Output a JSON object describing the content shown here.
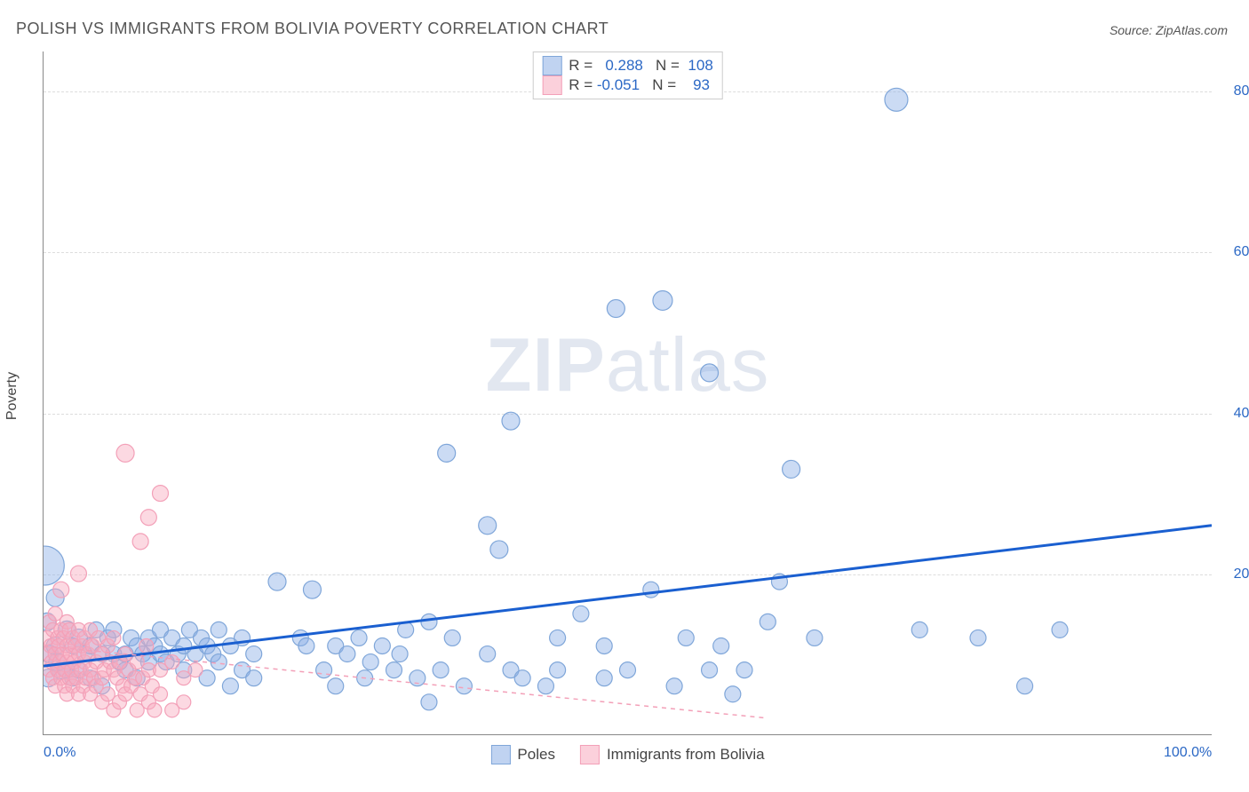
{
  "title": "POLISH VS IMMIGRANTS FROM BOLIVIA POVERTY CORRELATION CHART",
  "source": "Source: ZipAtlas.com",
  "watermark_zip": "ZIP",
  "watermark_atlas": "atlas",
  "ylabel": "Poverty",
  "chart": {
    "type": "scatter",
    "xlim": [
      0,
      100
    ],
    "ylim": [
      0,
      85
    ],
    "xticks": [
      {
        "v": 0,
        "label": "0.0%"
      },
      {
        "v": 100,
        "label": "100.0%"
      }
    ],
    "yticks": [
      {
        "v": 20,
        "label": "20.0%"
      },
      {
        "v": 40,
        "label": "40.0%"
      },
      {
        "v": 60,
        "label": "60.0%"
      },
      {
        "v": 80,
        "label": "80.0%"
      }
    ],
    "grid_color": "#dddddd",
    "background_color": "#ffffff",
    "axis_color": "#888888",
    "tick_label_color": "#2b68c5",
    "series": [
      {
        "name": "Poles",
        "fill": "rgba(140,175,230,0.45)",
        "stroke": "#7fa6d9",
        "r_default": 9,
        "trend": {
          "x1": 0,
          "y1": 8.5,
          "x2": 100,
          "y2": 26,
          "color": "#1a5fd0",
          "width": 3,
          "dash": "none"
        },
        "stats": {
          "R": "0.288",
          "N": "108"
        },
        "points": [
          [
            0.1,
            21,
            22
          ],
          [
            0.3,
            14,
            10
          ],
          [
            0.5,
            10,
            10
          ],
          [
            0.4,
            7,
            10
          ],
          [
            1,
            17,
            10
          ],
          [
            1,
            11,
            10
          ],
          [
            1.2,
            9,
            10
          ],
          [
            1.5,
            8,
            10
          ],
          [
            2,
            13,
            10
          ],
          [
            2,
            8,
            9
          ],
          [
            2.5,
            11,
            9
          ],
          [
            2.5,
            7,
            9
          ],
          [
            3,
            12,
            10
          ],
          [
            3,
            8,
            9
          ],
          [
            3.5,
            10,
            9
          ],
          [
            4,
            11,
            9
          ],
          [
            4,
            7,
            9
          ],
          [
            4.5,
            13,
            9
          ],
          [
            5,
            10,
            9
          ],
          [
            5,
            6,
            9
          ],
          [
            5.5,
            12,
            9
          ],
          [
            6,
            10,
            9
          ],
          [
            6,
            13,
            9
          ],
          [
            6.5,
            9,
            9
          ],
          [
            7,
            10,
            9
          ],
          [
            7,
            8,
            9
          ],
          [
            7.5,
            12,
            9
          ],
          [
            8,
            11,
            9
          ],
          [
            8,
            7,
            9
          ],
          [
            8.5,
            10,
            9
          ],
          [
            9,
            12,
            9
          ],
          [
            9,
            9,
            9
          ],
          [
            9.5,
            11,
            9
          ],
          [
            10,
            10,
            9
          ],
          [
            10,
            13,
            9
          ],
          [
            10.5,
            9,
            9
          ],
          [
            11,
            12,
            9
          ],
          [
            11.5,
            10,
            9
          ],
          [
            12,
            11,
            9
          ],
          [
            12,
            8,
            9
          ],
          [
            12.5,
            13,
            9
          ],
          [
            13,
            10,
            9
          ],
          [
            13.5,
            12,
            9
          ],
          [
            14,
            11,
            9
          ],
          [
            14,
            7,
            9
          ],
          [
            14.5,
            10,
            9
          ],
          [
            15,
            13,
            9
          ],
          [
            15,
            9,
            9
          ],
          [
            16,
            11,
            9
          ],
          [
            16,
            6,
            9
          ],
          [
            17,
            12,
            9
          ],
          [
            17,
            8,
            9
          ],
          [
            18,
            10,
            9
          ],
          [
            18,
            7,
            9
          ],
          [
            20,
            19,
            10
          ],
          [
            22,
            12,
            9
          ],
          [
            22.5,
            11,
            9
          ],
          [
            23,
            18,
            10
          ],
          [
            24,
            8,
            9
          ],
          [
            25,
            11,
            9
          ],
          [
            25,
            6,
            9
          ],
          [
            26,
            10,
            9
          ],
          [
            27,
            12,
            9
          ],
          [
            27.5,
            7,
            9
          ],
          [
            28,
            9,
            9
          ],
          [
            29,
            11,
            9
          ],
          [
            30,
            8,
            9
          ],
          [
            30.5,
            10,
            9
          ],
          [
            31,
            13,
            9
          ],
          [
            32,
            7,
            9
          ],
          [
            33,
            14,
            9
          ],
          [
            33,
            4,
            9
          ],
          [
            34,
            8,
            9
          ],
          [
            34.5,
            35,
            10
          ],
          [
            35,
            12,
            9
          ],
          [
            36,
            6,
            9
          ],
          [
            38,
            26,
            10
          ],
          [
            38,
            10,
            9
          ],
          [
            39,
            23,
            10
          ],
          [
            40,
            8,
            9
          ],
          [
            40,
            39,
            10
          ],
          [
            41,
            7,
            9
          ],
          [
            43,
            6,
            9
          ],
          [
            44,
            12,
            9
          ],
          [
            44,
            8,
            9
          ],
          [
            46,
            15,
            9
          ],
          [
            48,
            7,
            9
          ],
          [
            48,
            11,
            9
          ],
          [
            49,
            53,
            10
          ],
          [
            50,
            8,
            9
          ],
          [
            52,
            18,
            9
          ],
          [
            53,
            54,
            11
          ],
          [
            54,
            6,
            9
          ],
          [
            55,
            12,
            9
          ],
          [
            57,
            45,
            10
          ],
          [
            57,
            8,
            9
          ],
          [
            58,
            11,
            9
          ],
          [
            59,
            5,
            9
          ],
          [
            60,
            8,
            9
          ],
          [
            62,
            14,
            9
          ],
          [
            63,
            19,
            9
          ],
          [
            64,
            33,
            10
          ],
          [
            66,
            12,
            9
          ],
          [
            73,
            79,
            13
          ],
          [
            75,
            13,
            9
          ],
          [
            80,
            12,
            9
          ],
          [
            84,
            6,
            9
          ],
          [
            87,
            13,
            9
          ]
        ]
      },
      {
        "name": "Immigrants from Bolivia",
        "fill": "rgba(248,170,190,0.45)",
        "stroke": "#f3a0b8",
        "r_default": 8,
        "trend": {
          "x1": 0,
          "y1": 11,
          "x2": 62,
          "y2": 2,
          "color": "#f3a0b8",
          "width": 1.5,
          "dash": "5,5"
        },
        "stats": {
          "R": "-0.051",
          "N": "93"
        },
        "points": [
          [
            0.3,
            12,
            8
          ],
          [
            0.4,
            10,
            8
          ],
          [
            0.5,
            14,
            8
          ],
          [
            0.5,
            8,
            8
          ],
          [
            0.6,
            11,
            8
          ],
          [
            0.7,
            9,
            8
          ],
          [
            0.8,
            13,
            8
          ],
          [
            0.8,
            7,
            8
          ],
          [
            1,
            15,
            8
          ],
          [
            1,
            10,
            8
          ],
          [
            1,
            6,
            8
          ],
          [
            1.2,
            12,
            8
          ],
          [
            1.2,
            8,
            8
          ],
          [
            1.3,
            11,
            8
          ],
          [
            1.4,
            9,
            8
          ],
          [
            1.5,
            18,
            9
          ],
          [
            1.5,
            13,
            8
          ],
          [
            1.5,
            7,
            8
          ],
          [
            1.6,
            10,
            8
          ],
          [
            1.7,
            12,
            8
          ],
          [
            1.8,
            8,
            8
          ],
          [
            1.8,
            6,
            8
          ],
          [
            2,
            14,
            8
          ],
          [
            2,
            11,
            8
          ],
          [
            2,
            9,
            8
          ],
          [
            2,
            5,
            8
          ],
          [
            2.2,
            13,
            8
          ],
          [
            2.2,
            7,
            8
          ],
          [
            2.3,
            10,
            8
          ],
          [
            2.4,
            8,
            8
          ],
          [
            2.5,
            12,
            8
          ],
          [
            2.5,
            6,
            8
          ],
          [
            2.6,
            9,
            8
          ],
          [
            2.7,
            11,
            8
          ],
          [
            2.8,
            7,
            8
          ],
          [
            3,
            13,
            8
          ],
          [
            3,
            10,
            8
          ],
          [
            3,
            5,
            8
          ],
          [
            3,
            20,
            9
          ],
          [
            3.2,
            8,
            8
          ],
          [
            3.3,
            11,
            8
          ],
          [
            3.4,
            6,
            8
          ],
          [
            3.5,
            12,
            8
          ],
          [
            3.5,
            9,
            8
          ],
          [
            3.6,
            7,
            8
          ],
          [
            3.8,
            10,
            8
          ],
          [
            4,
            13,
            8
          ],
          [
            4,
            8,
            8
          ],
          [
            4,
            5,
            8
          ],
          [
            4.2,
            11,
            8
          ],
          [
            4.3,
            7,
            8
          ],
          [
            4.5,
            9,
            8
          ],
          [
            4.5,
            6,
            8
          ],
          [
            4.7,
            12,
            8
          ],
          [
            5,
            10,
            8
          ],
          [
            5,
            7,
            8
          ],
          [
            5,
            4,
            8
          ],
          [
            5.2,
            8,
            8
          ],
          [
            5.5,
            11,
            8
          ],
          [
            5.5,
            5,
            8
          ],
          [
            5.7,
            9,
            8
          ],
          [
            6,
            8,
            8
          ],
          [
            6,
            3,
            8
          ],
          [
            6,
            12,
            8
          ],
          [
            6.3,
            7,
            8
          ],
          [
            6.5,
            9,
            8
          ],
          [
            6.5,
            4,
            8
          ],
          [
            6.8,
            6,
            8
          ],
          [
            7,
            10,
            8
          ],
          [
            7,
            5,
            8
          ],
          [
            7,
            35,
            10
          ],
          [
            7.3,
            8,
            8
          ],
          [
            7.5,
            6,
            8
          ],
          [
            7.8,
            7,
            8
          ],
          [
            8,
            9,
            8
          ],
          [
            8,
            3,
            8
          ],
          [
            8.3,
            24,
            9
          ],
          [
            8.3,
            5,
            8
          ],
          [
            8.5,
            7,
            8
          ],
          [
            8.8,
            11,
            8
          ],
          [
            9,
            4,
            8
          ],
          [
            9,
            27,
            9
          ],
          [
            9,
            8,
            8
          ],
          [
            9.3,
            6,
            8
          ],
          [
            9.5,
            3,
            8
          ],
          [
            10,
            30,
            9
          ],
          [
            10,
            8,
            8
          ],
          [
            10,
            5,
            8
          ],
          [
            11,
            3,
            8
          ],
          [
            11,
            9,
            8
          ],
          [
            12,
            7,
            8
          ],
          [
            12,
            4,
            8
          ],
          [
            13,
            8,
            8
          ]
        ]
      }
    ],
    "legend_top": {
      "border_color": "#cccccc",
      "rows": [
        {
          "swatch_fill": "rgba(140,175,230,0.55)",
          "swatch_stroke": "#7fa6d9",
          "text_prefix": "R = ",
          "r_val": "  0.288",
          "n_prefix": "   N = ",
          "n_val": " 108",
          "val_color": "#2b68c5"
        },
        {
          "swatch_fill": "rgba(248,170,190,0.55)",
          "swatch_stroke": "#f3a0b8",
          "text_prefix": "R = ",
          "r_val": "-0.051",
          "n_prefix": "   N = ",
          "n_val": "   93",
          "val_color": "#2b68c5"
        }
      ]
    },
    "legend_bottom": [
      {
        "swatch_fill": "rgba(140,175,230,0.55)",
        "swatch_stroke": "#7fa6d9",
        "label": "Poles"
      },
      {
        "swatch_fill": "rgba(248,170,190,0.55)",
        "swatch_stroke": "#f3a0b8",
        "label": "Immigrants from Bolivia"
      }
    ]
  }
}
